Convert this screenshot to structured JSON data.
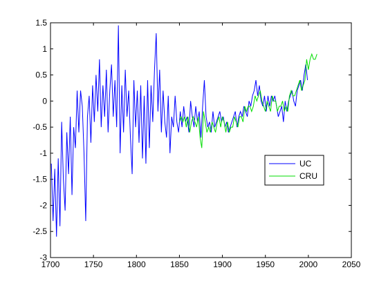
{
  "chart_data": {
    "type": "line",
    "xlim": [
      1700,
      2050
    ],
    "xticks": [
      1700,
      1750,
      1800,
      1850,
      1900,
      1950,
      2000,
      2050
    ],
    "ylim": [
      -3,
      1.5
    ],
    "yticks": [
      -3,
      -2.5,
      -2,
      -1.5,
      -1,
      -0.5,
      0,
      0.5,
      1,
      1.5
    ],
    "legend": "east",
    "grid": false,
    "series": [
      {
        "name": "UC",
        "color": "#0000ff",
        "x": [
          1701,
          1703,
          1705,
          1707,
          1709,
          1711,
          1713,
          1715,
          1717,
          1719,
          1721,
          1723,
          1725,
          1727,
          1729,
          1731,
          1733,
          1735,
          1737,
          1739,
          1741,
          1743,
          1745,
          1747,
          1749,
          1751,
          1753,
          1755,
          1757,
          1759,
          1761,
          1763,
          1765,
          1767,
          1769,
          1771,
          1773,
          1775,
          1777,
          1779,
          1781,
          1783,
          1785,
          1787,
          1789,
          1791,
          1793,
          1795,
          1797,
          1799,
          1801,
          1803,
          1805,
          1807,
          1809,
          1811,
          1813,
          1815,
          1817,
          1819,
          1821,
          1823,
          1825,
          1827,
          1829,
          1831,
          1833,
          1835,
          1837,
          1839,
          1841,
          1843,
          1845,
          1847,
          1849,
          1851,
          1853,
          1855,
          1857,
          1859,
          1861,
          1863,
          1865,
          1867,
          1869,
          1871,
          1873,
          1875,
          1877,
          1879,
          1881,
          1883,
          1885,
          1887,
          1889,
          1891,
          1893,
          1895,
          1897,
          1899,
          1901,
          1903,
          1905,
          1907,
          1909,
          1911,
          1913,
          1915,
          1917,
          1919,
          1921,
          1923,
          1925,
          1927,
          1929,
          1931,
          1933,
          1935,
          1937,
          1939,
          1941,
          1943,
          1945,
          1947,
          1949,
          1951,
          1953,
          1955,
          1957,
          1959,
          1961,
          1963,
          1965,
          1967,
          1969,
          1971,
          1973,
          1975,
          1977,
          1979,
          1981,
          1983,
          1985,
          1987,
          1989,
          1991,
          1993,
          1995,
          1997,
          1999
        ],
        "values": [
          -1.2,
          -2.3,
          -1.3,
          -2.6,
          -1.1,
          -2.4,
          -0.4,
          -1.5,
          -2.1,
          -0.6,
          -1.4,
          -0.3,
          -1.8,
          -0.5,
          -0.9,
          0.2,
          -0.6,
          0.2,
          -0.1,
          -1.0,
          -2.3,
          -0.3,
          0.1,
          -0.8,
          0.3,
          -0.4,
          0.5,
          -0.2,
          0.8,
          -0.5,
          0.3,
          -0.3,
          0.6,
          -0.6,
          0.2,
          0.7,
          -0.3,
          0.4,
          -0.5,
          1.45,
          -1.0,
          0.3,
          -0.6,
          0.6,
          -0.3,
          0.2,
          -0.7,
          -1.4,
          0.4,
          -0.5,
          0.2,
          -0.8,
          0.3,
          -1.1,
          0.1,
          -1.2,
          0.4,
          -0.9,
          0.3,
          -0.4,
          0.6,
          1.3,
          -0.2,
          0.6,
          -0.6,
          0.2,
          -0.4,
          -0.7,
          0.1,
          -1.0,
          -0.3,
          -0.5,
          0.1,
          -0.4,
          -0.6,
          -0.2,
          -0.5,
          -0.1,
          -0.4,
          -0.3,
          -0.6,
          0.0,
          -0.3,
          -0.5,
          -0.1,
          -0.4,
          -0.2,
          -0.7,
          -0.1,
          0.4,
          -0.3,
          -0.5,
          -0.4,
          -0.6,
          -0.2,
          -0.5,
          -0.4,
          -0.3,
          -0.2,
          -0.4,
          -0.3,
          -0.5,
          -0.4,
          -0.6,
          -0.5,
          -0.4,
          -0.3,
          -0.2,
          -0.5,
          -0.3,
          -0.2,
          -0.3,
          -0.1,
          -0.2,
          -0.3,
          0.0,
          -0.1,
          0.1,
          0.2,
          0.4,
          0.1,
          0.3,
          0.0,
          -0.1,
          0.1,
          -0.2,
          0.1,
          -0.1,
          0.1,
          0.0,
          0.1,
          -0.1,
          -0.3,
          -0.2,
          -0.1,
          -0.4,
          0.0,
          -0.2,
          0.0,
          0.1,
          0.2,
          0.0,
          -0.1,
          0.2,
          0.3,
          0.4,
          0.2,
          0.5,
          0.7,
          0.4
        ]
      },
      {
        "name": "CRU",
        "color": "#00dd00",
        "x": [
          1850,
          1852,
          1854,
          1856,
          1858,
          1860,
          1862,
          1864,
          1866,
          1868,
          1870,
          1872,
          1874,
          1876,
          1878,
          1880,
          1882,
          1884,
          1886,
          1888,
          1890,
          1892,
          1894,
          1896,
          1898,
          1900,
          1902,
          1904,
          1906,
          1908,
          1910,
          1912,
          1914,
          1916,
          1918,
          1920,
          1922,
          1924,
          1926,
          1928,
          1930,
          1932,
          1934,
          1936,
          1938,
          1940,
          1942,
          1944,
          1946,
          1948,
          1950,
          1952,
          1954,
          1956,
          1958,
          1960,
          1962,
          1964,
          1966,
          1968,
          1970,
          1972,
          1974,
          1976,
          1978,
          1980,
          1982,
          1984,
          1986,
          1988,
          1990,
          1992,
          1994,
          1996,
          1998,
          2000,
          2002,
          2004,
          2006,
          2008,
          2010
        ],
        "values": [
          -0.4,
          -0.3,
          -0.4,
          -0.3,
          -0.5,
          -0.3,
          -0.6,
          -0.4,
          -0.3,
          -0.4,
          -0.5,
          -0.3,
          -0.7,
          -0.9,
          -0.2,
          -0.4,
          -0.6,
          -0.5,
          -0.6,
          -0.4,
          -0.5,
          -0.6,
          -0.4,
          -0.3,
          -0.5,
          -0.3,
          -0.4,
          -0.6,
          -0.4,
          -0.6,
          -0.5,
          -0.5,
          -0.3,
          -0.4,
          -0.5,
          -0.3,
          -0.3,
          -0.4,
          -0.1,
          -0.2,
          -0.1,
          -0.1,
          -0.2,
          -0.1,
          0.1,
          0.0,
          0.1,
          0.2,
          0.0,
          -0.1,
          -0.2,
          0.0,
          -0.1,
          -0.2,
          0.1,
          0.0,
          0.0,
          -0.2,
          -0.1,
          -0.1,
          0.0,
          -0.2,
          -0.1,
          -0.2,
          0.1,
          0.2,
          0.1,
          0.1,
          0.2,
          0.3,
          0.4,
          0.2,
          0.3,
          0.4,
          0.8,
          0.6,
          0.8,
          0.9,
          0.8,
          0.8,
          0.9
        ]
      }
    ]
  }
}
